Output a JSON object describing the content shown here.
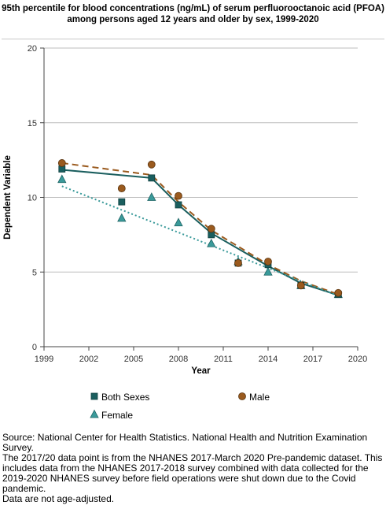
{
  "chart_data": {
    "type": "scatter",
    "title": "95th percentile for blood concentrations (ng/mL) of serum perfluorooctanoic acid (PFOA) among persons aged 12 years and older by sex, 1999-2020",
    "xlabel": "Year",
    "ylabel": "Dependent Variable",
    "xlim": [
      1999,
      2020
    ],
    "ylim": [
      0,
      20
    ],
    "xticks": [
      1999,
      2002,
      2005,
      2008,
      2011,
      2014,
      2017,
      2020
    ],
    "yticks": [
      0,
      5,
      10,
      15,
      20
    ],
    "grid": "horizontal",
    "legend": "bottom",
    "series": [
      {
        "name": "Both Sexes",
        "color": "#1a5e5e",
        "marker": "square",
        "x": [
          2000.2,
          2004.2,
          2006.2,
          2008.0,
          2010.2,
          2012.0,
          2014.0,
          2016.2,
          2018.7
        ],
        "y": [
          11.9,
          9.7,
          11.3,
          9.5,
          7.5,
          5.6,
          5.5,
          4.1,
          3.5
        ],
        "trend": {
          "style": "solid",
          "x": [
            2000.2,
            2006.2,
            2008.0,
            2010.2,
            2014.0,
            2016.2,
            2018.7
          ],
          "y": [
            11.85,
            11.3,
            9.5,
            7.6,
            5.4,
            4.25,
            3.45
          ]
        }
      },
      {
        "name": "Male",
        "color": "#9a5a1e",
        "marker": "circle",
        "x": [
          2000.2,
          2004.2,
          2006.2,
          2008.0,
          2010.2,
          2012.0,
          2014.0,
          2016.2,
          2018.7
        ],
        "y": [
          12.3,
          10.6,
          12.2,
          10.1,
          7.9,
          5.6,
          5.7,
          4.1,
          3.6
        ],
        "trend": {
          "style": "dashed",
          "x": [
            2000.2,
            2006.2,
            2008.0,
            2010.2,
            2014.0,
            2016.2,
            2018.7
          ],
          "y": [
            12.3,
            11.5,
            9.7,
            7.8,
            5.5,
            4.4,
            3.5
          ]
        }
      },
      {
        "name": "Female",
        "color": "#3a9a9a",
        "marker": "triangle",
        "x": [
          2000.2,
          2004.2,
          2006.2,
          2008.0,
          2010.2,
          2012.0,
          2014.0,
          2016.2,
          2018.7
        ],
        "y": [
          11.2,
          8.6,
          10.0,
          8.3,
          6.9,
          5.7,
          5.0,
          4.1,
          3.5
        ],
        "trend": {
          "style": "dotted",
          "x": [
            2000.2,
            2018.7
          ],
          "y": [
            10.75,
            3.4
          ]
        }
      }
    ]
  },
  "source_lines": [
    "Source: National Center for Health Statistics. National Health and Nutrition Examination Survey.",
    "The 2017/20 data point is from the NHANES 2017-March 2020 Pre-pandemic dataset. This includes data from the NHANES 2017-2018 survey combined with data collected for the 2019-2020 NHANES survey before field operations were shut down due to the Covid pandemic.",
    "Data are not age-adjusted."
  ]
}
